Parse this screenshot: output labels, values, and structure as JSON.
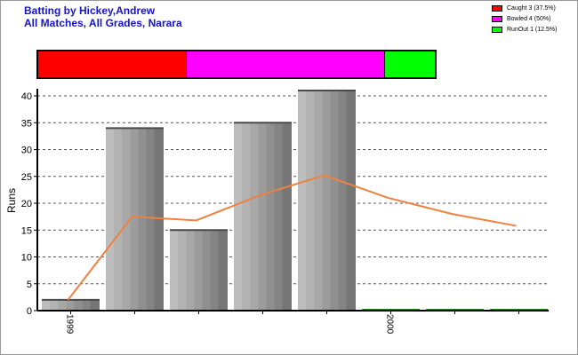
{
  "header": {
    "title": "Batting by Hickey,Andrew",
    "subtitle": "All Matches, All Grades, Narara"
  },
  "legend": [
    {
      "label": "Caught 3 (37.5%)",
      "color": "#ff0000",
      "fraction": 0.375
    },
    {
      "label": "Bowled 4 (50%)",
      "color": "#ff00ff",
      "fraction": 0.5
    },
    {
      "label": "RunOut 1 (12.5%)",
      "color": "#00ff00",
      "fraction": 0.125
    }
  ],
  "chart_data": {
    "type": "bar",
    "title": "Batting by Hickey,Andrew",
    "subtitle": "All Matches, All Grades, Narara",
    "xlabel": "",
    "ylabel": "Runs",
    "ylim": [
      0,
      41
    ],
    "yticks": [
      0,
      5,
      10,
      15,
      20,
      25,
      30,
      35,
      40
    ],
    "grid": true,
    "legend_position": "top-right",
    "categories": [
      "1",
      "2",
      "3",
      "4",
      "5",
      "6",
      "7",
      "8"
    ],
    "x_tick_labels": [
      {
        "index": 0,
        "label": "1999"
      },
      {
        "index": 5,
        "label": "2000"
      }
    ],
    "series": [
      {
        "name": "",
        "kind": "bar",
        "values": [
          2,
          34,
          15,
          35,
          41,
          0,
          0,
          0
        ]
      },
      {
        "name": "",
        "kind": "line",
        "color": "#f08040",
        "values": [
          2,
          17.5,
          16.8,
          21.5,
          25.2,
          21,
          18,
          15.8
        ]
      }
    ]
  }
}
